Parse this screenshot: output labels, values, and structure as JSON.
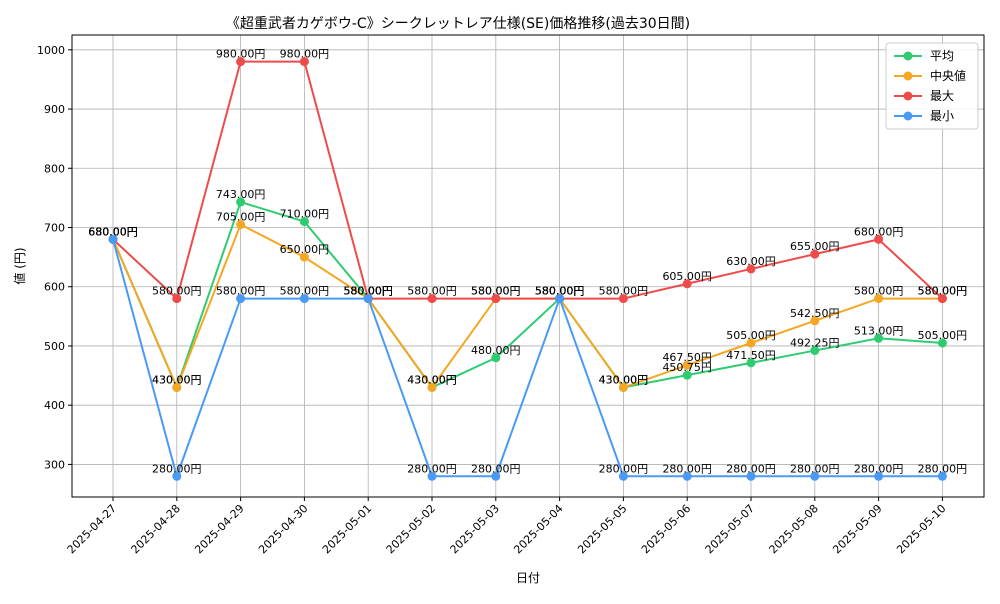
{
  "chart_data": {
    "type": "line",
    "title": "《超重武者カゲボウ-C》シークレットレア仕様(SE)価格推移(過去30日間)",
    "xlabel": "日付",
    "ylabel": "値 (円)",
    "categories": [
      "2025-04-27",
      "2025-04-28",
      "2025-04-29",
      "2025-04-30",
      "2025-05-01",
      "2025-05-02",
      "2025-05-03",
      "2025-05-04",
      "2025-05-05",
      "2025-05-06",
      "2025-05-07",
      "2025-05-08",
      "2025-05-09",
      "2025-05-10"
    ],
    "ylim": [
      245,
      1025
    ],
    "yticks": [
      300,
      400,
      500,
      600,
      700,
      800,
      900,
      1000
    ],
    "grid": true,
    "legend_position": "top-right",
    "value_suffix": "円",
    "series": [
      {
        "name": "平均",
        "color": "#2ecc71",
        "values": [
          680,
          430,
          743,
          710,
          580,
          430,
          480,
          580,
          430,
          450.75,
          471.5,
          492.25,
          513,
          505
        ],
        "labels": [
          "680.00円",
          "430.00円",
          "743.00円",
          "710.00円",
          "580.00円",
          "430.00円",
          "480.00円",
          "580.00円",
          "430.00円",
          "450.75円",
          "471.50円",
          "492.25円",
          "513.00円",
          "505.00円"
        ]
      },
      {
        "name": "中央値",
        "color": "#f5a623",
        "values": [
          680,
          430,
          705,
          650,
          580,
          430,
          580,
          580,
          430,
          467.5,
          505,
          542.5,
          580,
          580
        ],
        "labels": [
          "680.00円",
          "430.00円",
          "705.00円",
          "650.00円",
          "580.00円",
          "430.00円",
          "580.00円",
          "580.00円",
          "430.00円",
          "467.50円",
          "505.00円",
          "542.50円",
          "580.00円",
          "580.00円"
        ]
      },
      {
        "name": "最大",
        "color": "#ef4b4b",
        "values": [
          680,
          580,
          980,
          980,
          580,
          580,
          580,
          580,
          580,
          605,
          630,
          655,
          680,
          580
        ],
        "labels": [
          "680.00円",
          "580.00円",
          "980.00円",
          "980.00円",
          "580.00円",
          "580.00円",
          "580.00円",
          "580.00円",
          "580.00円",
          "605.00円",
          "630.00円",
          "655.00円",
          "680.00円",
          "580.00円"
        ]
      },
      {
        "name": "最小",
        "color": "#4a9af5",
        "values": [
          680,
          280,
          580,
          580,
          580,
          280,
          280,
          580,
          280,
          280,
          280,
          280,
          280,
          280
        ],
        "labels": [
          "680.00円",
          "280.00円",
          "580.00円",
          "580.00円",
          "580.00円",
          "280.00円",
          "280.00円",
          "580.00円",
          "280.00円",
          "280.00円",
          "280.00円",
          "280.00円",
          "280.00円",
          "280.00円"
        ]
      }
    ]
  }
}
